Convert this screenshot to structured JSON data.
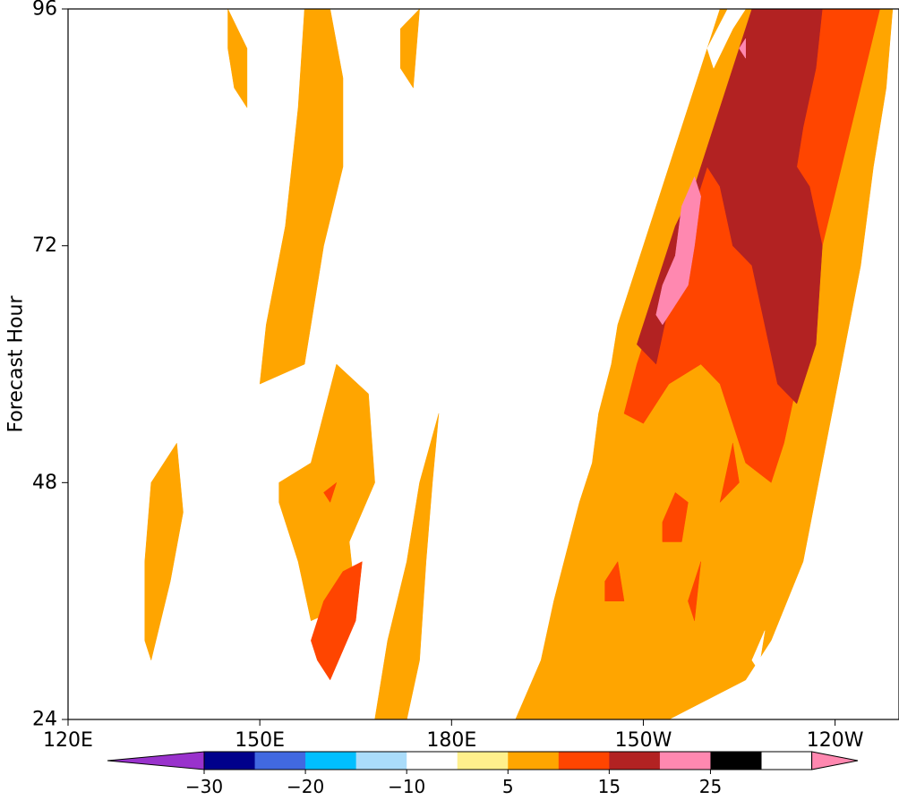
{
  "chart_data": {
    "type": "contour",
    "title": "",
    "xlabel": "",
    "ylabel": "Forecast Hour",
    "x_ticks": [
      "120E",
      "150E",
      "180E",
      "150W",
      "120W"
    ],
    "x_tick_degrees_east": [
      120,
      150,
      180,
      210,
      240
    ],
    "xlim_degrees_east": [
      120,
      250
    ],
    "y_ticks": [
      "24",
      "48",
      "72",
      "96"
    ],
    "y_tick_values": [
      24,
      48,
      72,
      96
    ],
    "ylim": [
      24,
      96
    ],
    "grid": false,
    "colorbar": {
      "orientation": "horizontal",
      "placement": "bottom",
      "extend": "both",
      "levels": [
        -30,
        -25,
        -20,
        -15,
        -10,
        -5,
        5,
        10,
        15,
        20,
        25,
        30
      ],
      "tick_labels": [
        "−30",
        "−20",
        "−10",
        "5",
        "15",
        "25"
      ],
      "tick_values": [
        -30,
        -20,
        -10,
        5,
        15,
        25
      ],
      "colors": [
        "#9932cc",
        "#00008b",
        "#4169e1",
        "#00bfff",
        "#aadcfa",
        "#ffffff",
        "#fff08c",
        "#ffa500",
        "#ff4500",
        "#b22222",
        "#ff88b0"
      ]
    },
    "features": [
      {
        "level_min": 5,
        "level_max": 10,
        "description": "broad scattered positive band, diagonal from 180E at hour 24 to 150W-120W at hour 96",
        "polygons": [
          [
            [
              190,
              24
            ],
            [
              194,
              30
            ],
            [
              196,
              36
            ],
            [
              198,
              41
            ],
            [
              200,
              46
            ],
            [
              202,
              50
            ],
            [
              203,
              55
            ],
            [
              205,
              60
            ],
            [
              206,
              64
            ],
            [
              208,
              68
            ],
            [
              210,
              72
            ],
            [
              213,
              78
            ],
            [
              216,
              84
            ],
            [
              219,
              90
            ],
            [
              222,
              96
            ],
            [
              249,
              96
            ],
            [
              248,
              88
            ],
            [
              246,
              80
            ],
            [
              244,
              70
            ],
            [
              241,
              60
            ],
            [
              238,
              50
            ],
            [
              235,
              40
            ],
            [
              230,
              32
            ],
            [
              226,
              28
            ],
            [
              214,
              24
            ]
          ],
          [
            [
              168,
              24
            ],
            [
              170,
              32
            ],
            [
              173,
              40
            ],
            [
              175,
              48
            ],
            [
              178,
              55
            ],
            [
              177,
              48
            ],
            [
              176,
              40
            ],
            [
              175,
              30
            ],
            [
              173,
              24
            ]
          ],
          [
            [
              153,
              48
            ],
            [
              158,
              50
            ],
            [
              162,
              60
            ],
            [
              167,
              57
            ],
            [
              168,
              48
            ],
            [
              164,
              42
            ],
            [
              165,
              36
            ],
            [
              158,
              34
            ],
            [
              156,
              40
            ],
            [
              153,
              46
            ]
          ],
          [
            [
              150,
              58
            ],
            [
              157,
              60
            ],
            [
              160,
              72
            ],
            [
              163,
              80
            ],
            [
              163,
              89
            ],
            [
              161,
              96
            ],
            [
              157,
              96
            ],
            [
              156,
              86
            ],
            [
              154,
              74
            ],
            [
              151,
              64
            ]
          ],
          [
            [
              133,
              30
            ],
            [
              136,
              38
            ],
            [
              138,
              45
            ],
            [
              137,
              52
            ],
            [
              133,
              48
            ],
            [
              132,
              40
            ],
            [
              132,
              32
            ]
          ],
          [
            [
              145,
              96
            ],
            [
              148,
              92
            ],
            [
              148,
              86
            ],
            [
              146,
              88
            ],
            [
              145,
              92
            ]
          ],
          [
            [
              172,
              94
            ],
            [
              175,
              96
            ],
            [
              174,
              88
            ],
            [
              172,
              90
            ]
          ]
        ]
      },
      {
        "level_min": 10,
        "level_max": 15,
        "description": "orange band",
        "polygons": [
          [
            [
              207,
              55
            ],
            [
              209,
              60
            ],
            [
              211,
              64
            ],
            [
              213,
              68
            ],
            [
              215,
              72
            ],
            [
              219,
              78
            ],
            [
              222,
              84
            ],
            [
              226,
              90
            ],
            [
              229,
              96
            ],
            [
              247,
              96
            ],
            [
              244,
              88
            ],
            [
              241,
              80
            ],
            [
              238,
              72
            ],
            [
              236,
              64
            ],
            [
              234,
              58
            ],
            [
              232,
              52
            ],
            [
              230,
              48
            ],
            [
              226,
              50
            ],
            [
              224,
              54
            ],
            [
              222,
              58
            ],
            [
              219,
              60
            ],
            [
              214,
              58
            ],
            [
              210,
              54
            ]
          ],
          [
            [
              159,
              30
            ],
            [
              161,
              28
            ],
            [
              165,
              34
            ],
            [
              166,
              40
            ],
            [
              163,
              39
            ],
            [
              160,
              36
            ],
            [
              158,
              32
            ]
          ],
          [
            [
              217,
              36
            ],
            [
              219,
              40
            ],
            [
              218,
              34
            ]
          ],
          [
            [
              213,
              44
            ],
            [
              215,
              47
            ],
            [
              217,
              46
            ],
            [
              216,
              42
            ],
            [
              213,
              42
            ]
          ],
          [
            [
              204,
              38
            ],
            [
              206,
              40
            ],
            [
              207,
              36
            ],
            [
              204,
              36
            ]
          ],
          [
            [
              222,
              46
            ],
            [
              224,
              52
            ],
            [
              225,
              48
            ]
          ],
          [
            [
              160,
              47
            ],
            [
              162,
              48
            ],
            [
              161,
              46
            ]
          ]
        ]
      },
      {
        "level_min": 15,
        "level_max": 20,
        "description": "orange-red core",
        "polygons": [
          [
            [
              209,
              62
            ],
            [
              211,
              66
            ],
            [
              213,
              70
            ],
            [
              215,
              74
            ],
            [
              218,
              78
            ],
            [
              221,
              84
            ],
            [
              224,
              90
            ],
            [
              227,
              96
            ],
            [
              238,
              96
            ],
            [
              237,
              90
            ],
            [
              235,
              84
            ],
            [
              234,
              80
            ],
            [
              236,
              78
            ],
            [
              238,
              72
            ],
            [
              237,
              62
            ],
            [
              234,
              56
            ],
            [
              231,
              58
            ],
            [
              229,
              64
            ],
            [
              227,
              70
            ],
            [
              224,
              72
            ],
            [
              222,
              78
            ],
            [
              220,
              80
            ],
            [
              218,
              76
            ],
            [
              216,
              70
            ],
            [
              214,
              66
            ],
            [
              212,
              60
            ]
          ]
        ]
      },
      {
        "level_min": 20,
        "level_max": 25,
        "description": "dark red maxima",
        "polygons": [
          [
            [
              212,
              65
            ],
            [
              213,
              68
            ],
            [
              215,
              71
            ],
            [
              216,
              76
            ],
            [
              218,
              79
            ],
            [
              219,
              77
            ],
            [
              218,
              72
            ],
            [
              217,
              68
            ],
            [
              215,
              66
            ],
            [
              213,
              64
            ]
          ],
          [
            [
              225,
              92
            ],
            [
              226,
              93
            ],
            [
              226,
              91
            ]
          ]
        ]
      },
      {
        "level_min": -10,
        "level_max": -5,
        "description": "small negative patches",
        "polygons": [
          [
            [
              126,
              24
            ],
            [
              123,
              26
            ],
            [
              120,
              24
            ]
          ],
          [
            [
              221,
              90
            ],
            [
              224,
              94
            ],
            [
              227,
              97
            ],
            [
              224,
              97
            ],
            [
              220,
              92
            ]
          ],
          [
            [
              228,
              29
            ],
            [
              229,
              33
            ],
            [
              227,
              30
            ]
          ],
          [
            [
              134,
              24
            ],
            [
              135,
              25
            ],
            [
              136,
              24
            ]
          ],
          [
            [
              127,
              56
            ],
            [
              128,
              58
            ],
            [
              126,
              57
            ]
          ],
          [
            [
              183,
              96
            ],
            [
              185,
              94
            ],
            [
              184,
              92
            ]
          ]
        ]
      }
    ]
  }
}
